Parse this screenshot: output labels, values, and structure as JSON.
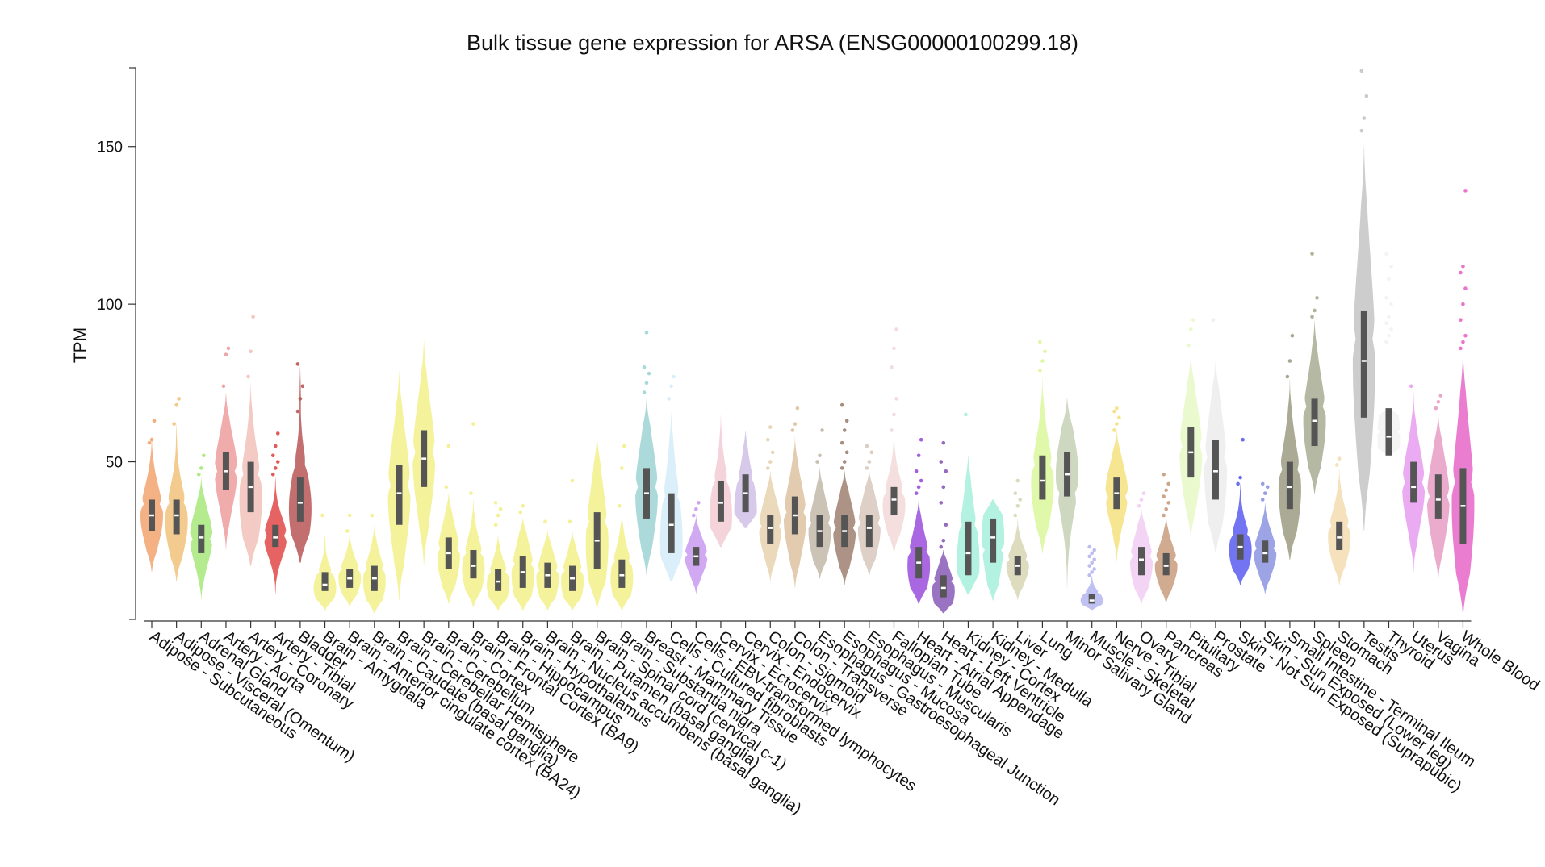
{
  "chart_data": {
    "type": "violin",
    "title": "Bulk tissue gene expression for ARSA (ENSG00000100299.18)",
    "xlabel": "",
    "ylabel": "TPM",
    "ylim": [
      0,
      175
    ],
    "yticks": [
      50,
      100,
      150
    ],
    "grid": false,
    "categories": [
      {
        "name": "Adipose - Subcutaneous",
        "color": "#f2a46e",
        "min": 15,
        "q1": 28,
        "median": 33,
        "q3": 38,
        "max": 58,
        "mode": 33,
        "outliers": [
          56,
          57,
          63
        ]
      },
      {
        "name": "Adipose - Visceral (Omentum)",
        "color": "#f2c27a",
        "min": 12,
        "q1": 27,
        "median": 33,
        "q3": 38,
        "max": 62,
        "mode": 31,
        "outliers": [
          62,
          68,
          70
        ]
      },
      {
        "name": "Adrenal Gland",
        "color": "#a6e87a",
        "min": 6,
        "q1": 21,
        "median": 26,
        "q3": 30,
        "max": 45,
        "mode": 26,
        "outliers": [
          46,
          48,
          52
        ]
      },
      {
        "name": "Artery - Aorta",
        "color": "#ed9c9c",
        "min": 22,
        "q1": 41,
        "median": 47,
        "q3": 53,
        "max": 72,
        "mode": 47,
        "outliers": [
          74,
          84,
          86
        ]
      },
      {
        "name": "Artery - Coronary",
        "color": "#f2c2ba",
        "min": 17,
        "q1": 34,
        "median": 42,
        "q3": 50,
        "max": 75,
        "mode": 38,
        "outliers": [
          77,
          85,
          96
        ]
      },
      {
        "name": "Artery - Tibial",
        "color": "#e04848",
        "min": 8,
        "q1": 23,
        "median": 26,
        "q3": 30,
        "max": 45,
        "mode": 26,
        "outliers": [
          46,
          48,
          50,
          52,
          55,
          59
        ]
      },
      {
        "name": "Bladder",
        "color": "#b85656",
        "min": 18,
        "q1": 31,
        "median": 37,
        "q3": 45,
        "max": 80,
        "mode": 35,
        "outliers": [
          66,
          70,
          74,
          81
        ]
      },
      {
        "name": "Brain - Amygdala",
        "color": "#f2f088",
        "min": 3,
        "q1": 9,
        "median": 11,
        "q3": 15,
        "max": 27,
        "mode": 10,
        "outliers": [
          33
        ]
      },
      {
        "name": "Brain - Anterior cingulate cortex (BA24)",
        "color": "#f2f088",
        "min": 4,
        "q1": 10,
        "median": 13,
        "q3": 16,
        "max": 28,
        "mode": 13,
        "outliers": [
          28,
          33
        ]
      },
      {
        "name": "Brain - Caudate (basal ganglia)",
        "color": "#f2f088",
        "min": 2,
        "q1": 9,
        "median": 13,
        "q3": 17,
        "max": 30,
        "mode": 12,
        "outliers": [
          33
        ]
      },
      {
        "name": "Brain - Cerebellar Hemisphere",
        "color": "#f2f088",
        "min": 6,
        "q1": 30,
        "median": 40,
        "q3": 49,
        "max": 79,
        "mode": 40,
        "outliers": []
      },
      {
        "name": "Brain - Cerebellum",
        "color": "#f2f088",
        "min": 17,
        "q1": 42,
        "median": 51,
        "q3": 60,
        "max": 89,
        "mode": 51,
        "outliers": []
      },
      {
        "name": "Brain - Cortex",
        "color": "#f2f088",
        "min": 5,
        "q1": 16,
        "median": 21,
        "q3": 26,
        "max": 40,
        "mode": 20,
        "outliers": [
          42,
          55
        ]
      },
      {
        "name": "Brain - Frontal Cortex (BA9)",
        "color": "#f2f088",
        "min": 4,
        "q1": 13,
        "median": 17,
        "q3": 22,
        "max": 38,
        "mode": 16,
        "outliers": [
          40,
          62
        ]
      },
      {
        "name": "Brain - Hippocampus",
        "color": "#f2f088",
        "min": 3,
        "q1": 9,
        "median": 12,
        "q3": 16,
        "max": 27,
        "mode": 11,
        "outliers": [
          30,
          33,
          35,
          37
        ]
      },
      {
        "name": "Brain - Hypothalamus",
        "color": "#f2f088",
        "min": 3,
        "q1": 10,
        "median": 15,
        "q3": 20,
        "max": 32,
        "mode": 14,
        "outliers": [
          34,
          36
        ]
      },
      {
        "name": "Brain - Nucleus accumbens (basal ganglia)",
        "color": "#f2f088",
        "min": 3,
        "q1": 10,
        "median": 14,
        "q3": 18,
        "max": 28,
        "mode": 13,
        "outliers": [
          31
        ]
      },
      {
        "name": "Brain - Putamen (basal ganglia)",
        "color": "#f2f088",
        "min": 3,
        "q1": 9,
        "median": 13,
        "q3": 17,
        "max": 28,
        "mode": 12,
        "outliers": [
          31,
          44
        ]
      },
      {
        "name": "Brain - Spinal cord (cervical c-1)",
        "color": "#f2f088",
        "min": 4,
        "q1": 16,
        "median": 25,
        "q3": 34,
        "max": 58,
        "mode": 24,
        "outliers": []
      },
      {
        "name": "Brain - Substantia nigra",
        "color": "#f2f088",
        "min": 3,
        "q1": 10,
        "median": 14,
        "q3": 19,
        "max": 34,
        "mode": 13,
        "outliers": [
          36,
          48,
          55
        ]
      },
      {
        "name": "Breast - Mammary Tissue",
        "color": "#9ed4d4",
        "min": 14,
        "q1": 32,
        "median": 40,
        "q3": 48,
        "max": 70,
        "mode": 40,
        "outliers": [
          72,
          75,
          78,
          80,
          91
        ]
      },
      {
        "name": "Cells - Cultured fibroblasts",
        "color": "#d4ecf8",
        "min": 12,
        "q1": 21,
        "median": 30,
        "q3": 40,
        "max": 66,
        "mode": 25,
        "outliers": [
          70,
          74,
          77
        ]
      },
      {
        "name": "Cells - EBV-transformed lymphocytes",
        "color": "#c89af0",
        "min": 8,
        "q1": 17,
        "median": 20,
        "q3": 23,
        "max": 33,
        "mode": 20,
        "outliers": [
          33,
          35,
          37
        ]
      },
      {
        "name": "Cervix - Ectocervix",
        "color": "#f2ccd4",
        "min": 23,
        "q1": 31,
        "median": 37,
        "q3": 44,
        "max": 65,
        "mode": 33,
        "outliers": []
      },
      {
        "name": "Cervix - Endocervix",
        "color": "#cfc0e6",
        "min": 29,
        "q1": 34,
        "median": 40,
        "q3": 46,
        "max": 60,
        "mode": 35,
        "outliers": []
      },
      {
        "name": "Colon - Sigmoid",
        "color": "#e6d2ae",
        "min": 12,
        "q1": 24,
        "median": 29,
        "q3": 33,
        "max": 47,
        "mode": 29,
        "outliers": [
          48,
          50,
          53,
          57,
          61
        ]
      },
      {
        "name": "Colon - Transverse",
        "color": "#ddc2a0",
        "min": 10,
        "q1": 27,
        "median": 33,
        "q3": 39,
        "max": 58,
        "mode": 32,
        "outliers": [
          60,
          62,
          67
        ]
      },
      {
        "name": "Esophagus - Gastroesophageal Junction",
        "color": "#c2b8a8",
        "min": 13,
        "q1": 23,
        "median": 28,
        "q3": 33,
        "max": 48,
        "mode": 28,
        "outliers": [
          50,
          52,
          60
        ]
      },
      {
        "name": "Esophagus - Mucosa",
        "color": "#9e8070",
        "min": 11,
        "q1": 23,
        "median": 28,
        "q3": 33,
        "max": 47,
        "mode": 28,
        "outliers": [
          48,
          50,
          53,
          56,
          60,
          63,
          68
        ]
      },
      {
        "name": "Esophagus - Muscularis",
        "color": "#d8c8bc",
        "min": 14,
        "q1": 23,
        "median": 29,
        "q3": 33,
        "max": 47,
        "mode": 29,
        "outliers": [
          48,
          50,
          53,
          55
        ]
      },
      {
        "name": "Fallopian Tube",
        "color": "#f2d8d8",
        "min": 21,
        "q1": 33,
        "median": 38,
        "q3": 42,
        "max": 60,
        "mode": 36,
        "outliers": [
          60,
          65,
          70,
          80,
          86,
          92
        ]
      },
      {
        "name": "Heart - Atrial Appendage",
        "color": "#9a4edc",
        "min": 5,
        "q1": 13,
        "median": 18,
        "q3": 23,
        "max": 38,
        "mode": 17,
        "outliers": [
          40,
          42,
          44,
          47,
          52,
          57
        ]
      },
      {
        "name": "Heart - Left Ventricle",
        "color": "#8a5ab8",
        "min": 2,
        "q1": 7,
        "median": 10,
        "q3": 14,
        "max": 22,
        "mode": 9,
        "outliers": [
          23,
          25,
          30,
          37,
          42,
          47,
          50,
          56
        ]
      },
      {
        "name": "Kidney - Cortex",
        "color": "#a6f0da",
        "min": 8,
        "q1": 14,
        "median": 21,
        "q3": 31,
        "max": 52,
        "mode": 18,
        "outliers": [
          65
        ]
      },
      {
        "name": "Kidney - Medulla",
        "color": "#a6f0da",
        "min": 6,
        "q1": 18,
        "median": 26,
        "q3": 32,
        "max": 38,
        "mode": 26,
        "outliers": []
      },
      {
        "name": "Liver",
        "color": "#d8d6b4",
        "min": 6,
        "q1": 14,
        "median": 17,
        "q3": 20,
        "max": 32,
        "mode": 17,
        "outliers": [
          33,
          36,
          38,
          40,
          44
        ]
      },
      {
        "name": "Lung",
        "color": "#daf79a",
        "min": 21,
        "q1": 38,
        "median": 44,
        "q3": 52,
        "max": 77,
        "mode": 43,
        "outliers": [
          79,
          82,
          85,
          88
        ]
      },
      {
        "name": "Minor Salivary Gland",
        "color": "#c6d0b4",
        "min": 10,
        "q1": 39,
        "median": 46,
        "q3": 53,
        "max": 70,
        "mode": 46,
        "outliers": []
      },
      {
        "name": "Muscle - Skeletal",
        "color": "#b4b6f0",
        "min": 3,
        "q1": 5,
        "median": 6,
        "q3": 8,
        "max": 14,
        "mode": 6,
        "outliers": [
          14,
          15,
          16,
          17,
          18,
          19,
          20,
          21,
          22,
          23
        ]
      },
      {
        "name": "Nerve - Tibial",
        "color": "#f5e07e",
        "min": 18,
        "q1": 35,
        "median": 40,
        "q3": 45,
        "max": 60,
        "mode": 40,
        "outliers": [
          60,
          62,
          64,
          66,
          67
        ]
      },
      {
        "name": "Ovary",
        "color": "#f2ccf2",
        "min": 5,
        "q1": 14,
        "median": 19,
        "q3": 23,
        "max": 35,
        "mode": 18,
        "outliers": [
          36,
          38,
          40
        ]
      },
      {
        "name": "Pancreas",
        "color": "#c89c7c",
        "min": 5,
        "q1": 14,
        "median": 17,
        "q3": 21,
        "max": 33,
        "mode": 17,
        "outliers": [
          33,
          35,
          37,
          39,
          41,
          43,
          46
        ]
      },
      {
        "name": "Pituitary",
        "color": "#e6f8c6",
        "min": 26,
        "q1": 45,
        "median": 53,
        "q3": 61,
        "max": 84,
        "mode": 53,
        "outliers": [
          87,
          92,
          95
        ]
      },
      {
        "name": "Prostate",
        "color": "#ececec",
        "min": 21,
        "q1": 38,
        "median": 47,
        "q3": 57,
        "max": 82,
        "mode": 47,
        "outliers": [
          95
        ]
      },
      {
        "name": "Skin - Not Sun Exposed (Suprapubic)",
        "color": "#5a5cf0",
        "min": 11,
        "q1": 19,
        "median": 23,
        "q3": 27,
        "max": 43,
        "mode": 22,
        "outliers": [
          43,
          45,
          57
        ]
      },
      {
        "name": "Skin - Sun Exposed (Lower leg)",
        "color": "#8c94e0",
        "min": 8,
        "q1": 18,
        "median": 21,
        "q3": 25,
        "max": 37,
        "mode": 21,
        "outliers": [
          38,
          40,
          42,
          43
        ]
      },
      {
        "name": "Small Intestine - Terminal Ileum",
        "color": "#9c9c82",
        "min": 19,
        "q1": 35,
        "median": 42,
        "q3": 50,
        "max": 76,
        "mode": 41,
        "outliers": [
          77,
          82,
          90
        ]
      },
      {
        "name": "Spleen",
        "color": "#a8ac92",
        "min": 40,
        "q1": 55,
        "median": 63,
        "q3": 70,
        "max": 95,
        "mode": 63,
        "outliers": [
          96,
          98,
          102,
          116
        ]
      },
      {
        "name": "Stomach",
        "color": "#f5dcb2",
        "min": 11,
        "q1": 22,
        "median": 26,
        "q3": 31,
        "max": 48,
        "mode": 26,
        "outliers": [
          49,
          51
        ]
      },
      {
        "name": "Testis",
        "color": "#c4c4c4",
        "min": 28,
        "q1": 64,
        "median": 82,
        "q3": 98,
        "max": 150,
        "mode": 82,
        "outliers": [
          155,
          159,
          166,
          174
        ]
      },
      {
        "name": "Thyroid",
        "color": "#f2f2f2",
        "min": 52,
        "q1": 52,
        "median": 58,
        "q3": 67,
        "max": 67,
        "mode": 58,
        "outliers": [
          88,
          90,
          92,
          94,
          96,
          100,
          102,
          108,
          112,
          116
        ]
      },
      {
        "name": "Uterus",
        "color": "#e89cf0",
        "min": 15,
        "q1": 37,
        "median": 42,
        "q3": 50,
        "max": 72,
        "mode": 42,
        "outliers": [
          74
        ]
      },
      {
        "name": "Vagina",
        "color": "#e89cc4",
        "min": 13,
        "q1": 32,
        "median": 38,
        "q3": 46,
        "max": 65,
        "mode": 38,
        "outliers": [
          67,
          69,
          71
        ]
      },
      {
        "name": "Whole Blood",
        "color": "#e866c8",
        "min": 2,
        "q1": 24,
        "median": 36,
        "q3": 48,
        "max": 85,
        "mode": 36,
        "outliers": [
          86,
          88,
          90,
          95,
          100,
          105,
          110,
          112,
          136
        ]
      }
    ]
  }
}
